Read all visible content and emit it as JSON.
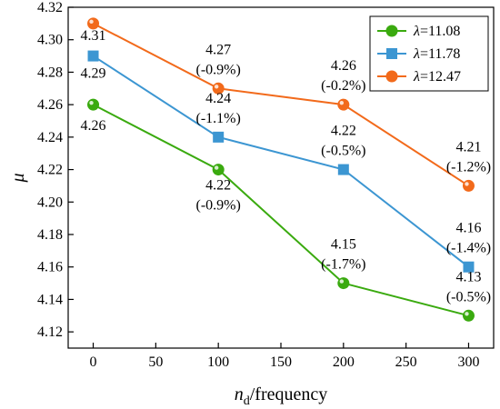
{
  "chart_data": {
    "type": "line",
    "x": [
      0,
      100,
      200,
      300
    ],
    "xlabel_base": "n",
    "xlabel_sub": "d",
    "xlabel_rest": "/frequency",
    "ylabel": "μ",
    "xlim": [
      -20,
      320
    ],
    "ylim": [
      4.11,
      4.32
    ],
    "xticks": [
      0,
      50,
      100,
      150,
      200,
      250,
      300
    ],
    "yticks": [
      4.12,
      4.14,
      4.16,
      4.18,
      4.2,
      4.22,
      4.24,
      4.26,
      4.28,
      4.3,
      4.32
    ],
    "grid": false,
    "legend_position": "top-right",
    "series": [
      {
        "name_symbol": "λ",
        "name_value": "=11.08",
        "color": "#3aaa0f",
        "marker": "circle",
        "values": [
          4.26,
          4.22,
          4.15,
          4.13
        ],
        "labels": [
          [
            "4.26"
          ],
          [
            "4.22",
            "(-0.9%)"
          ],
          [
            "4.15",
            "(-1.7%)"
          ],
          [
            "4.13",
            "(-0.5%)"
          ]
        ]
      },
      {
        "name_symbol": "λ",
        "name_value": "=11.78",
        "color": "#3c96d2",
        "marker": "square",
        "values": [
          4.29,
          4.24,
          4.22,
          4.16
        ],
        "labels": [
          [
            "4.29"
          ],
          [
            "4.24",
            "(-1.1%)"
          ],
          [
            "4.22",
            "(-0.5%)"
          ],
          [
            "4.16",
            "(-1.4%)"
          ]
        ]
      },
      {
        "name_symbol": "λ",
        "name_value": "=12.47",
        "color": "#f26a1b",
        "marker": "circle",
        "values": [
          4.31,
          4.27,
          4.26,
          4.21
        ],
        "labels": [
          [
            "4.31"
          ],
          [
            "4.27",
            "(-0.9%)"
          ],
          [
            "4.26",
            "(-0.2%)"
          ],
          [
            "4.21",
            "(-1.2%)"
          ]
        ]
      }
    ]
  }
}
